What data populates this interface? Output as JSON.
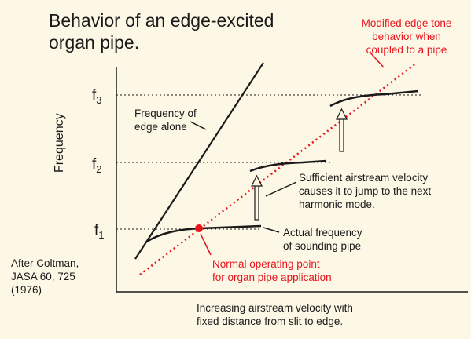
{
  "title_line1": "Behavior of an edge-excited",
  "title_line2": "organ pipe.",
  "y_axis_label": "Frequency",
  "x_axis_label_line1": "Increasing airstream velocity with",
  "x_axis_label_line2": "fixed distance from slit to edge.",
  "f_labels": {
    "f1": "f",
    "f1_sub": "1",
    "f2": "f",
    "f2_sub": "2",
    "f3": "f",
    "f3_sub": "3"
  },
  "edge_alone_line1": "Frequency of",
  "edge_alone_line2": "edge alone",
  "modified_line1": "Modified edge tone",
  "modified_line2": "behavior when",
  "modified_line3": "coupled to a pipe",
  "jump_line1": "Sufficient airstream velocity",
  "jump_line2": "causes it to jump to the next",
  "jump_line3": "harmonic mode.",
  "actual_line1": "Actual frequency",
  "actual_line2": "of sounding pipe",
  "normal_line1": "Normal operating point",
  "normal_line2": "for organ pipe application",
  "citation_line1": "After Coltman,",
  "citation_line2": "JASA 60, 725",
  "citation_line3": "(1976)",
  "colors": {
    "accent_red": "#e8141c",
    "ink": "#1a1a1a",
    "background": "#fdf7e6"
  }
}
